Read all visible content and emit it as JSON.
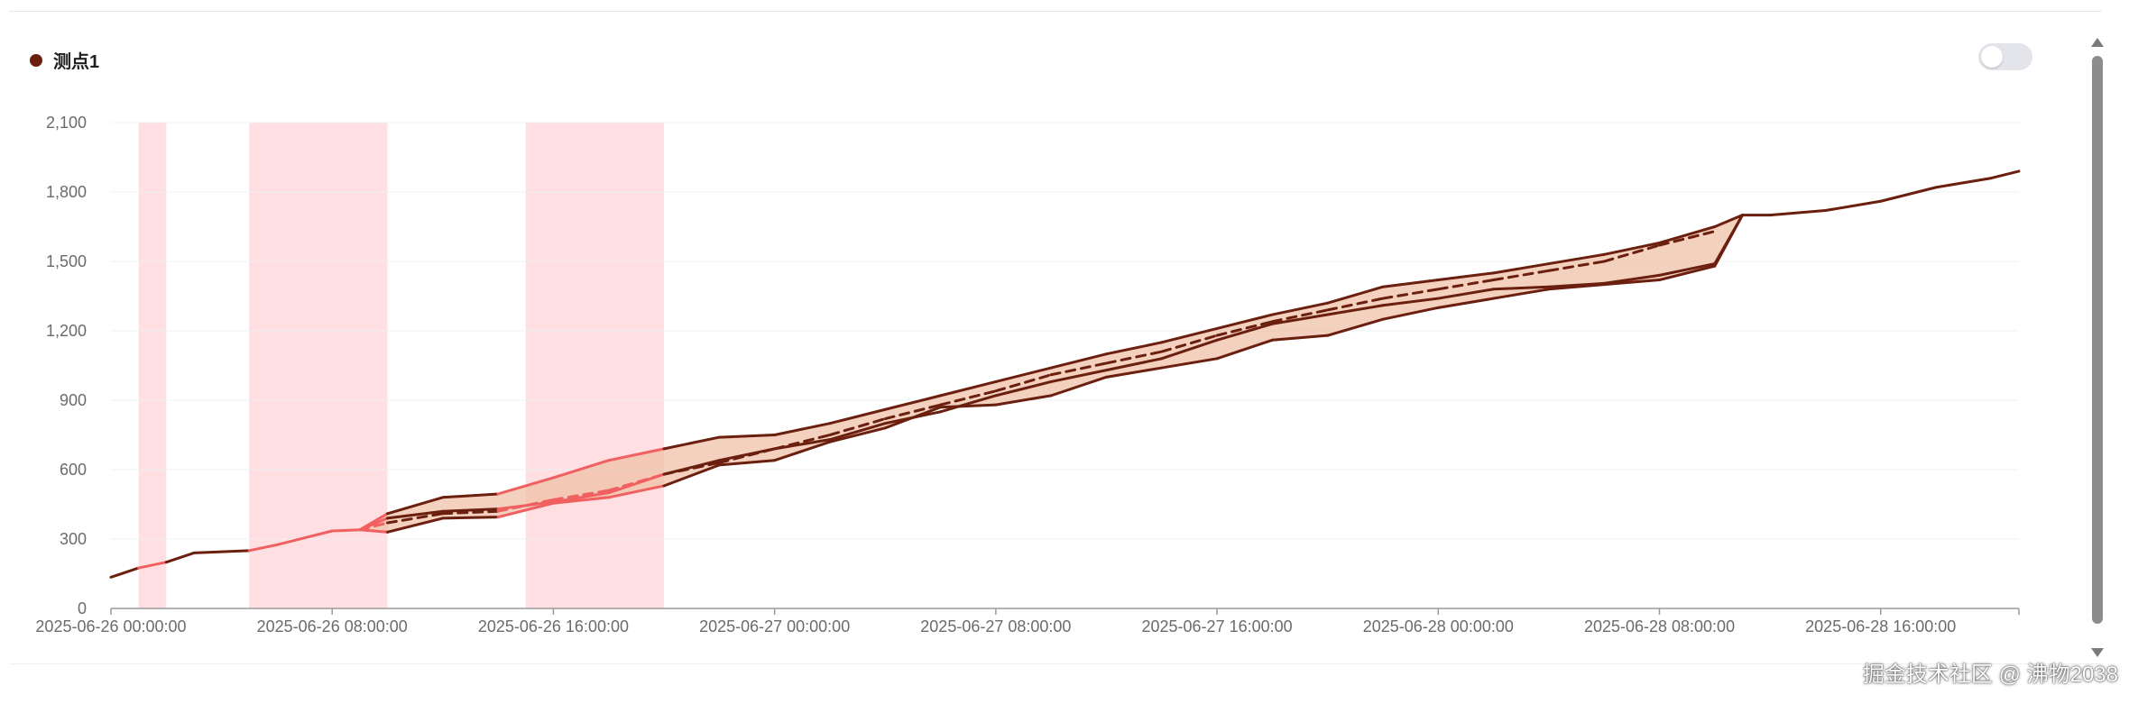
{
  "legend": {
    "label": "测点1",
    "color": "#6b1f0e"
  },
  "watermark": "掘金技术社区 @ 沸物2038",
  "colors": {
    "line": "#6b1f0e",
    "band_fill": "#eebda3",
    "band_fill_opacity": 0.7,
    "highlight_line": "#f06060",
    "shade": "#ffdfe2",
    "grid": "#eef0f3",
    "axis": "#9a9a9a"
  },
  "chart_data": {
    "type": "line",
    "title": "",
    "xlabel": "",
    "ylabel": "",
    "ylim": [
      0,
      2100
    ],
    "y_ticks": [
      0,
      300,
      600,
      900,
      1200,
      1500,
      1800,
      2100
    ],
    "y_tick_labels": [
      "0",
      "300",
      "600",
      "900",
      "1,200",
      "1,500",
      "1,800",
      "2,100"
    ],
    "xlim": [
      "2025-06-26 00:00:00",
      "2025-06-28 21:00:00"
    ],
    "x_ticks": [
      "2025-06-26 00:00:00",
      "2025-06-26 08:00:00",
      "2025-06-26 16:00:00",
      "2025-06-27 00:00:00",
      "2025-06-27 08:00:00",
      "2025-06-27 16:00:00",
      "2025-06-28 00:00:00",
      "2025-06-28 08:00:00",
      "2025-06-28 16:00:00"
    ],
    "grid": "horizontal",
    "legend_position": "top-left",
    "shaded_ranges": [
      [
        "2025-06-26 01:00:00",
        "2025-06-26 02:00:00"
      ],
      [
        "2025-06-26 05:00:00",
        "2025-06-26 10:00:00"
      ],
      [
        "2025-06-26 15:00:00",
        "2025-06-26 20:00:00"
      ]
    ],
    "series": [
      {
        "name": "测点1",
        "role": "main",
        "x": [
          "2025-06-26 00:00:00",
          "2025-06-26 01:00:00",
          "2025-06-26 02:00:00",
          "2025-06-26 03:00:00",
          "2025-06-26 04:00:00",
          "2025-06-26 05:00:00",
          "2025-06-26 06:00:00",
          "2025-06-26 07:00:00",
          "2025-06-26 08:00:00",
          "2025-06-26 09:00:00"
        ],
        "y": [
          135,
          175,
          200,
          240,
          245,
          250,
          275,
          305,
          335,
          340
        ]
      },
      {
        "role": "actual",
        "x": [
          "2025-06-26 09:00:00",
          "2025-06-26 10:00:00",
          "2025-06-26 12:00:00",
          "2025-06-26 14:00:00",
          "2025-06-26 16:00:00",
          "2025-06-26 18:00:00",
          "2025-06-26 20:00:00",
          "2025-06-26 22:00:00",
          "2025-06-27 00:00:00",
          "2025-06-27 02:00:00",
          "2025-06-27 04:00:00",
          "2025-06-27 06:00:00",
          "2025-06-27 08:00:00",
          "2025-06-27 10:00:00",
          "2025-06-27 12:00:00",
          "2025-06-27 14:00:00",
          "2025-06-27 16:00:00",
          "2025-06-27 18:00:00",
          "2025-06-27 20:00:00",
          "2025-06-27 22:00:00",
          "2025-06-28 00:00:00",
          "2025-06-28 02:00:00",
          "2025-06-28 04:00:00",
          "2025-06-28 06:00:00",
          "2025-06-28 08:00:00",
          "2025-06-28 10:00:00",
          "2025-06-28 11:00:00",
          "2025-06-28 12:00:00",
          "2025-06-28 14:00:00",
          "2025-06-28 16:00:00",
          "2025-06-28 18:00:00",
          "2025-06-28 20:00:00",
          "2025-06-28 21:00:00"
        ],
        "y": [
          340,
          390,
          420,
          430,
          460,
          500,
          580,
          640,
          690,
          730,
          800,
          850,
          920,
          980,
          1030,
          1080,
          1160,
          1230,
          1270,
          1310,
          1340,
          1380,
          1390,
          1405,
          1440,
          1490,
          1700,
          1700,
          1720,
          1760,
          1820,
          1860,
          1890
        ]
      },
      {
        "role": "upper",
        "x": [
          "2025-06-26 09:00:00",
          "2025-06-26 10:00:00",
          "2025-06-26 12:00:00",
          "2025-06-26 14:00:00",
          "2025-06-26 16:00:00",
          "2025-06-26 18:00:00",
          "2025-06-26 20:00:00",
          "2025-06-26 22:00:00",
          "2025-06-27 00:00:00",
          "2025-06-27 02:00:00",
          "2025-06-27 04:00:00",
          "2025-06-27 06:00:00",
          "2025-06-27 08:00:00",
          "2025-06-27 10:00:00",
          "2025-06-27 12:00:00",
          "2025-06-27 14:00:00",
          "2025-06-27 16:00:00",
          "2025-06-27 18:00:00",
          "2025-06-27 20:00:00",
          "2025-06-27 22:00:00",
          "2025-06-28 00:00:00",
          "2025-06-28 02:00:00",
          "2025-06-28 04:00:00",
          "2025-06-28 06:00:00",
          "2025-06-28 08:00:00",
          "2025-06-28 10:00:00",
          "2025-06-28 11:00:00"
        ],
        "y": [
          340,
          410,
          480,
          495,
          565,
          640,
          690,
          740,
          750,
          800,
          860,
          920,
          980,
          1040,
          1100,
          1150,
          1210,
          1270,
          1320,
          1390,
          1420,
          1450,
          1490,
          1530,
          1580,
          1650,
          1700
        ]
      },
      {
        "role": "lower",
        "x": [
          "2025-06-26 09:00:00",
          "2025-06-26 10:00:00",
          "2025-06-26 12:00:00",
          "2025-06-26 14:00:00",
          "2025-06-26 16:00:00",
          "2025-06-26 18:00:00",
          "2025-06-26 20:00:00",
          "2025-06-26 22:00:00",
          "2025-06-27 00:00:00",
          "2025-06-27 02:00:00",
          "2025-06-27 04:00:00",
          "2025-06-27 06:00:00",
          "2025-06-27 08:00:00",
          "2025-06-27 10:00:00",
          "2025-06-27 12:00:00",
          "2025-06-27 14:00:00",
          "2025-06-27 16:00:00",
          "2025-06-27 18:00:00",
          "2025-06-27 20:00:00",
          "2025-06-27 22:00:00",
          "2025-06-28 00:00:00",
          "2025-06-28 02:00:00",
          "2025-06-28 04:00:00",
          "2025-06-28 06:00:00",
          "2025-06-28 08:00:00",
          "2025-06-28 10:00:00",
          "2025-06-28 11:00:00"
        ],
        "y": [
          340,
          330,
          390,
          395,
          455,
          480,
          530,
          620,
          640,
          720,
          780,
          870,
          880,
          920,
          1000,
          1040,
          1080,
          1160,
          1180,
          1250,
          1300,
          1340,
          1380,
          1400,
          1420,
          1480,
          1700
        ]
      },
      {
        "role": "predicted",
        "style": "dashed",
        "x": [
          "2025-06-26 09:00:00",
          "2025-06-26 10:00:00",
          "2025-06-26 12:00:00",
          "2025-06-26 14:00:00",
          "2025-06-26 16:00:00",
          "2025-06-26 18:00:00",
          "2025-06-26 20:00:00",
          "2025-06-26 22:00:00",
          "2025-06-27 00:00:00",
          "2025-06-27 02:00:00",
          "2025-06-27 04:00:00",
          "2025-06-27 06:00:00",
          "2025-06-27 08:00:00",
          "2025-06-27 10:00:00",
          "2025-06-27 12:00:00",
          "2025-06-27 14:00:00",
          "2025-06-27 16:00:00",
          "2025-06-27 18:00:00",
          "2025-06-27 20:00:00",
          "2025-06-27 22:00:00",
          "2025-06-28 00:00:00",
          "2025-06-28 02:00:00",
          "2025-06-28 04:00:00",
          "2025-06-28 06:00:00",
          "2025-06-28 08:00:00",
          "2025-06-28 10:00:00"
        ],
        "y": [
          340,
          370,
          410,
          420,
          470,
          510,
          580,
          630,
          690,
          750,
          820,
          880,
          940,
          1010,
          1060,
          1110,
          1180,
          1240,
          1290,
          1340,
          1380,
          1420,
          1460,
          1500,
          1570,
          1630
        ]
      }
    ]
  }
}
